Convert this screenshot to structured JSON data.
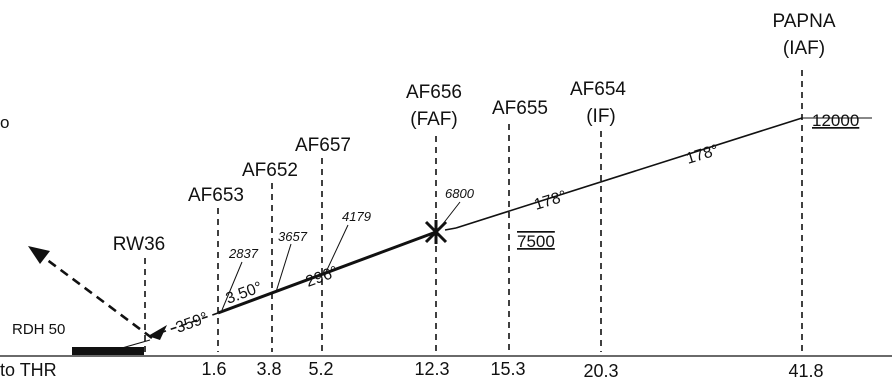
{
  "fixes": {
    "papna": {
      "name": "PAPNA",
      "role": "(IAF)",
      "distance": "41.8",
      "altitude": "12000"
    },
    "af654": {
      "name": "AF654",
      "role": "(IF)",
      "distance": "20.3"
    },
    "af655": {
      "name": "AF655",
      "distance": "15.3",
      "altitude": "7500"
    },
    "af656": {
      "name": "AF656",
      "role": "(FAF)",
      "distance": "12.3",
      "altitude": "6800"
    },
    "af657": {
      "name": "AF657",
      "distance": "5.2",
      "altitude": "4179"
    },
    "af652": {
      "name": "AF652",
      "distance": "3.8",
      "altitude": "3657"
    },
    "af653": {
      "name": "AF653",
      "distance": "1.6",
      "altitude": "2837"
    },
    "runway": {
      "name": "RW36",
      "rdh": "RDH 50"
    }
  },
  "courses": {
    "papna_af654": "178°",
    "af654_af656": "178°",
    "final": "296°",
    "glidepath": "3.50°",
    "missed": "359°"
  },
  "distance_label": "to THR",
  "left_fragment": "o"
}
